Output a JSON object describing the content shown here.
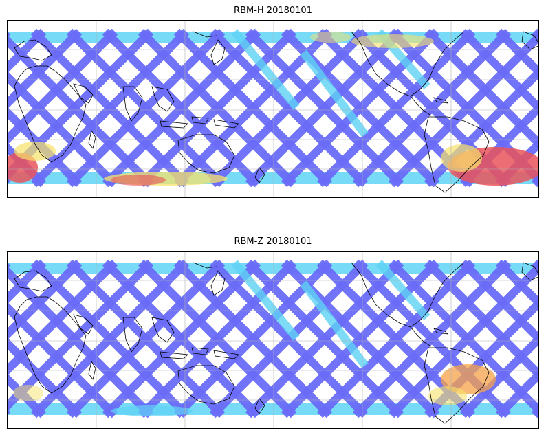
{
  "panels": [
    {
      "title": "RBM-H 20180101",
      "colors": {
        "low": "#6a6cf8",
        "mid": "#5fd3f5",
        "high": "#f7e36a",
        "max": "#e9545a"
      }
    },
    {
      "title": "RBM-Z 20180101",
      "colors": {
        "low": "#6a6cf8",
        "mid": "#5fd3f5",
        "high": "#f7e36a",
        "max": "#f5a14a"
      }
    }
  ],
  "grid": "on",
  "coastlines": "on"
}
